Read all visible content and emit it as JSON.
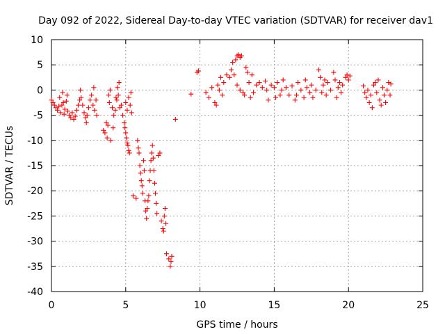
{
  "chart_data": {
    "type": "scatter",
    "title": "Day 092 of 2022, Sidereal Day-to-day VTEC variation (SDTVAR) for receiver dav1",
    "xlabel": "GPS time / hours",
    "ylabel": "SDTVAR / TECUs",
    "xlim": [
      0,
      25
    ],
    "ylim": [
      -40,
      10
    ],
    "xticks": [
      0,
      5,
      10,
      15,
      20,
      25
    ],
    "yticks": [
      10,
      5,
      0,
      -5,
      -10,
      -15,
      -20,
      -25,
      -30,
      -35,
      -40
    ],
    "grid": true,
    "marker": "+",
    "color": "#ff0000",
    "series": [
      {
        "name": "SDTVAR",
        "points": [
          [
            0.0,
            -2.0
          ],
          [
            0.1,
            -2.5
          ],
          [
            0.2,
            -3.0
          ],
          [
            0.3,
            -3.5
          ],
          [
            0.4,
            -4.0
          ],
          [
            0.5,
            -3.2
          ],
          [
            0.55,
            -1.5
          ],
          [
            0.6,
            -4.5
          ],
          [
            0.7,
            -3.0
          ],
          [
            0.75,
            -0.5
          ],
          [
            0.8,
            -2.5
          ],
          [
            0.85,
            -4.8
          ],
          [
            0.9,
            -3.8
          ],
          [
            1.0,
            -2.2
          ],
          [
            1.05,
            -1.0
          ],
          [
            1.1,
            -4.2
          ],
          [
            1.2,
            -5.0
          ],
          [
            1.3,
            -5.5
          ],
          [
            1.4,
            -4.5
          ],
          [
            1.5,
            -5.8
          ],
          [
            1.6,
            -5.2
          ],
          [
            1.7,
            -4.0
          ],
          [
            1.8,
            -3.0
          ],
          [
            1.9,
            -2.0
          ],
          [
            1.95,
            0.0
          ],
          [
            2.0,
            -1.5
          ],
          [
            2.1,
            -3.0
          ],
          [
            2.2,
            -4.5
          ],
          [
            2.3,
            -5.5
          ],
          [
            2.35,
            -6.5
          ],
          [
            2.4,
            -5.0
          ],
          [
            2.5,
            -3.5
          ],
          [
            2.6,
            -2.0
          ],
          [
            2.7,
            -1.0
          ],
          [
            2.8,
            -3.0
          ],
          [
            2.9,
            -4.0
          ],
          [
            3.0,
            -2.0
          ],
          [
            2.85,
            0.5
          ],
          [
            3.05,
            -5.0
          ],
          [
            3.5,
            -8.0
          ],
          [
            3.6,
            -8.5
          ],
          [
            3.7,
            -6.5
          ],
          [
            3.75,
            -9.5
          ],
          [
            3.8,
            -7.0
          ],
          [
            3.85,
            -1.0
          ],
          [
            3.9,
            -2.5
          ],
          [
            3.95,
            0.0
          ],
          [
            4.0,
            -10.0
          ],
          [
            4.1,
            -3.5
          ],
          [
            4.15,
            -7.5
          ],
          [
            4.2,
            -5.0
          ],
          [
            4.3,
            -4.0
          ],
          [
            4.35,
            -1.5
          ],
          [
            4.4,
            -2.0
          ],
          [
            4.45,
            0.5
          ],
          [
            4.5,
            -1.0
          ],
          [
            4.55,
            1.5
          ],
          [
            4.6,
            -3.5
          ],
          [
            4.7,
            -3.0
          ],
          [
            4.8,
            -5.0
          ],
          [
            4.9,
            -6.5
          ],
          [
            4.95,
            -7.5
          ],
          [
            5.0,
            -8.5
          ],
          [
            5.05,
            -9.5
          ],
          [
            5.1,
            -10.5
          ],
          [
            5.15,
            -11.0
          ],
          [
            5.2,
            -12.0
          ],
          [
            5.25,
            -12.5
          ],
          [
            5.0,
            -2.5
          ],
          [
            5.1,
            -4.0
          ],
          [
            5.2,
            -1.5
          ],
          [
            5.3,
            -3.0
          ],
          [
            5.4,
            -4.5
          ],
          [
            5.35,
            -0.5
          ],
          [
            5.5,
            -21.0
          ],
          [
            5.7,
            -21.5
          ],
          [
            5.8,
            -10.0
          ],
          [
            5.85,
            -11.5
          ],
          [
            5.9,
            -12.5
          ],
          [
            5.95,
            -15.0
          ],
          [
            6.0,
            -16.5
          ],
          [
            6.05,
            -18.0
          ],
          [
            6.1,
            -19.0
          ],
          [
            6.15,
            -20.5
          ],
          [
            6.2,
            -14.0
          ],
          [
            6.25,
            -16.0
          ],
          [
            6.3,
            -22.0
          ],
          [
            6.35,
            -24.0
          ],
          [
            6.4,
            -25.5
          ],
          [
            6.45,
            -23.5
          ],
          [
            6.5,
            -22.0
          ],
          [
            6.55,
            -21.0
          ],
          [
            6.6,
            -18.0
          ],
          [
            6.65,
            -16.0
          ],
          [
            6.7,
            -14.0
          ],
          [
            6.75,
            -12.5
          ],
          [
            6.8,
            -11.0
          ],
          [
            6.85,
            -13.5
          ],
          [
            6.9,
            -16.0
          ],
          [
            6.95,
            -18.5
          ],
          [
            7.0,
            -20.5
          ],
          [
            7.05,
            -22.5
          ],
          [
            7.1,
            -24.5
          ],
          [
            7.2,
            -13.0
          ],
          [
            7.3,
            -12.5
          ],
          [
            7.4,
            -26.0
          ],
          [
            7.5,
            -27.5
          ],
          [
            7.55,
            -28.0
          ],
          [
            7.6,
            -25.0
          ],
          [
            7.65,
            -23.5
          ],
          [
            7.7,
            -26.5
          ],
          [
            7.75,
            -32.5
          ],
          [
            7.9,
            -33.5
          ],
          [
            8.0,
            -35.0
          ],
          [
            8.05,
            -34.0
          ],
          [
            8.1,
            -33.0
          ],
          [
            8.35,
            -5.8
          ],
          [
            9.4,
            -0.8
          ],
          [
            9.8,
            3.5
          ],
          [
            9.9,
            3.8
          ],
          [
            10.4,
            -0.5
          ],
          [
            10.6,
            -1.5
          ],
          [
            10.8,
            0.5
          ],
          [
            11.0,
            -2.5
          ],
          [
            11.1,
            -3.0
          ],
          [
            11.2,
            1.0
          ],
          [
            11.3,
            0.0
          ],
          [
            11.4,
            2.5
          ],
          [
            11.5,
            -1.0
          ],
          [
            11.6,
            1.5
          ],
          [
            11.8,
            3.0
          ],
          [
            12.0,
            2.5
          ],
          [
            12.1,
            4.0
          ],
          [
            12.2,
            5.5
          ],
          [
            12.3,
            3.0
          ],
          [
            12.4,
            6.0
          ],
          [
            12.5,
            6.8
          ],
          [
            12.6,
            7.0
          ],
          [
            12.7,
            6.5
          ],
          [
            12.8,
            6.8
          ],
          [
            12.5,
            1.0
          ],
          [
            12.7,
            0.0
          ],
          [
            12.9,
            -0.5
          ],
          [
            13.0,
            -1.0
          ],
          [
            13.1,
            4.5
          ],
          [
            13.2,
            3.5
          ],
          [
            13.3,
            1.5
          ],
          [
            13.4,
            -1.5
          ],
          [
            13.5,
            3.0
          ],
          [
            13.6,
            -0.5
          ],
          [
            13.8,
            1.0
          ],
          [
            14.0,
            1.5
          ],
          [
            14.2,
            0.5
          ],
          [
            14.4,
            1.8
          ],
          [
            14.5,
            0.0
          ],
          [
            14.6,
            -2.0
          ],
          [
            14.8,
            1.0
          ],
          [
            15.0,
            0.5
          ],
          [
            15.1,
            -1.5
          ],
          [
            15.2,
            1.5
          ],
          [
            15.4,
            -1.0
          ],
          [
            15.5,
            0.0
          ],
          [
            15.6,
            2.0
          ],
          [
            15.8,
            0.5
          ],
          [
            16.0,
            -1.0
          ],
          [
            16.2,
            0.8
          ],
          [
            16.4,
            -2.0
          ],
          [
            16.5,
            -1.0
          ],
          [
            16.6,
            1.5
          ],
          [
            16.8,
            0.0
          ],
          [
            17.0,
            -1.5
          ],
          [
            17.1,
            2.0
          ],
          [
            17.2,
            0.5
          ],
          [
            17.4,
            -0.5
          ],
          [
            17.5,
            1.0
          ],
          [
            17.6,
            -1.5
          ],
          [
            17.8,
            0.0
          ],
          [
            18.0,
            4.0
          ],
          [
            18.1,
            2.5
          ],
          [
            18.2,
            -0.5
          ],
          [
            18.3,
            1.0
          ],
          [
            18.4,
            2.0
          ],
          [
            18.5,
            -1.0
          ],
          [
            18.6,
            1.5
          ],
          [
            18.8,
            0.0
          ],
          [
            19.0,
            3.5
          ],
          [
            19.1,
            2.0
          ],
          [
            19.2,
            -1.5
          ],
          [
            19.3,
            0.5
          ],
          [
            19.4,
            1.5
          ],
          [
            19.5,
            -0.5
          ],
          [
            19.6,
            1.0
          ],
          [
            19.8,
            2.5
          ],
          [
            19.9,
            3.0
          ],
          [
            20.0,
            2.0
          ],
          [
            20.1,
            2.8
          ],
          [
            21.0,
            0.8
          ],
          [
            21.1,
            -0.5
          ],
          [
            21.2,
            -1.5
          ],
          [
            21.3,
            0.0
          ],
          [
            21.4,
            -2.5
          ],
          [
            21.5,
            -1.0
          ],
          [
            21.6,
            -3.5
          ],
          [
            21.7,
            1.0
          ],
          [
            21.8,
            1.5
          ],
          [
            21.9,
            -0.5
          ],
          [
            22.0,
            2.0
          ],
          [
            22.1,
            -2.0
          ],
          [
            22.2,
            -3.0
          ],
          [
            22.3,
            0.5
          ],
          [
            22.4,
            -1.0
          ],
          [
            22.5,
            -2.5
          ],
          [
            22.6,
            0.0
          ],
          [
            22.7,
            1.5
          ],
          [
            22.8,
            -1.0
          ],
          [
            22.85,
            1.2
          ]
        ]
      }
    ]
  }
}
